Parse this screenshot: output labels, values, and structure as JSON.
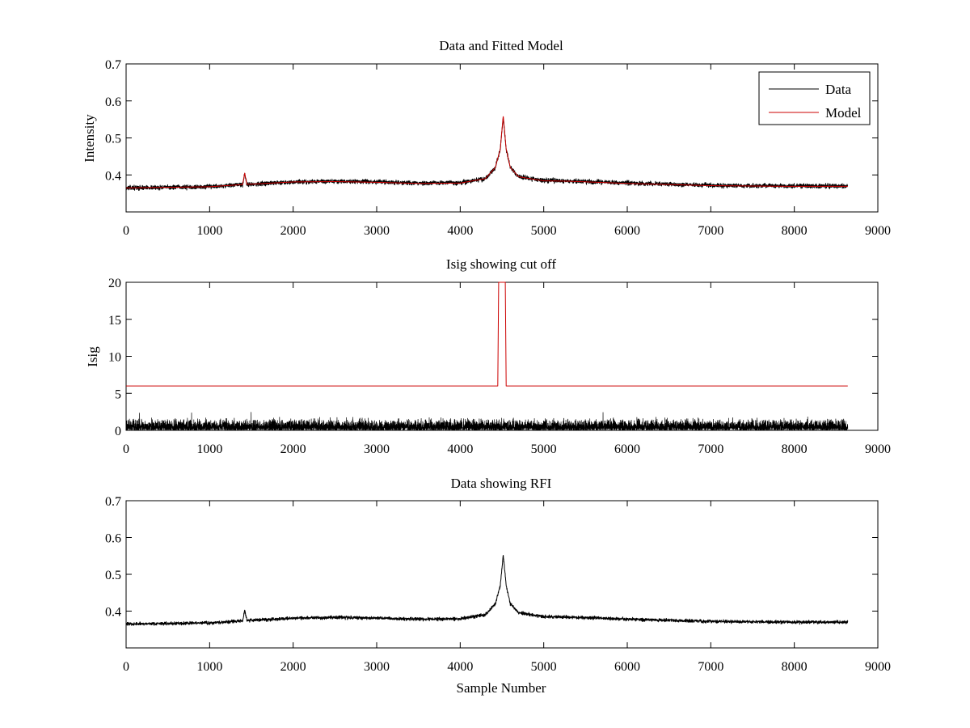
{
  "chart_data": [
    {
      "id": "top",
      "type": "line",
      "title": "Data and Fitted Model",
      "xlabel": "",
      "ylabel": "Intensity",
      "xlim": [
        0,
        9000
      ],
      "ylim": [
        0.3,
        0.7
      ],
      "xticks": [
        "0",
        "1000",
        "2000",
        "3000",
        "4000",
        "5000",
        "6000",
        "7000",
        "8000",
        "9000"
      ],
      "yticks": [
        "0.4",
        "0.5",
        "0.6",
        "0.7"
      ],
      "n_samples": 8640,
      "legend": {
        "location": "top-right",
        "entries": [
          "Data",
          "Model"
        ]
      },
      "series": [
        {
          "name": "Data",
          "color": "#000000",
          "baseline": [
            [
              0,
              0.365
            ],
            [
              1000,
              0.368
            ],
            [
              1400,
              0.374
            ],
            [
              2000,
              0.381
            ],
            [
              2500,
              0.383
            ],
            [
              3000,
              0.381
            ],
            [
              3500,
              0.378
            ],
            [
              4000,
              0.379
            ],
            [
              4300,
              0.39
            ],
            [
              4420,
              0.42
            ],
            [
              4480,
              0.47
            ],
            [
              4515,
              0.555
            ],
            [
              4550,
              0.47
            ],
            [
              4600,
              0.42
            ],
            [
              4700,
              0.395
            ],
            [
              5000,
              0.385
            ],
            [
              5300,
              0.384
            ],
            [
              6000,
              0.378
            ],
            [
              7000,
              0.372
            ],
            [
              8000,
              0.37
            ],
            [
              8640,
              0.37
            ]
          ],
          "spikes": [
            [
              1420,
              0.402
            ]
          ],
          "noise": 0.004
        },
        {
          "name": "Model",
          "color": "#cc0000",
          "baseline": [
            [
              0,
              0.365
            ],
            [
              1000,
              0.368
            ],
            [
              1400,
              0.374
            ],
            [
              2000,
              0.381
            ],
            [
              2500,
              0.382
            ],
            [
              3000,
              0.38
            ],
            [
              3500,
              0.377
            ],
            [
              4000,
              0.378
            ],
            [
              4300,
              0.39
            ],
            [
              4420,
              0.42
            ],
            [
              4480,
              0.47
            ],
            [
              4515,
              0.56
            ],
            [
              4550,
              0.47
            ],
            [
              4600,
              0.42
            ],
            [
              4700,
              0.395
            ],
            [
              5000,
              0.384
            ],
            [
              5300,
              0.383
            ],
            [
              6000,
              0.377
            ],
            [
              7000,
              0.371
            ],
            [
              8000,
              0.369
            ],
            [
              8640,
              0.369
            ]
          ],
          "spikes": [
            [
              1420,
              0.405
            ]
          ],
          "noise": 0
        }
      ]
    },
    {
      "id": "mid",
      "type": "line",
      "title": "Isig showing cut off",
      "xlabel": "",
      "ylabel": "Isig",
      "xlim": [
        0,
        9000
      ],
      "ylim": [
        0,
        20
      ],
      "xticks": [
        "0",
        "1000",
        "2000",
        "3000",
        "4000",
        "5000",
        "6000",
        "7000",
        "8000",
        "9000"
      ],
      "yticks": [
        "0",
        "5",
        "10",
        "15",
        "20"
      ],
      "n_samples": 8640,
      "series": [
        {
          "name": "Isig",
          "color": "#000000",
          "kind": "abs-noise",
          "scale": 1.0,
          "max": 3.5
        },
        {
          "name": "Cut off",
          "color": "#cc0000",
          "kind": "step",
          "points": [
            [
              0,
              6
            ],
            [
              4450,
              6
            ],
            [
              4460,
              20
            ],
            [
              4540,
              20
            ],
            [
              4550,
              6
            ],
            [
              8640,
              6
            ]
          ]
        }
      ]
    },
    {
      "id": "bot",
      "type": "line",
      "title": "Data showing RFI",
      "xlabel": "Sample Number",
      "ylabel": "",
      "xlim": [
        0,
        9000
      ],
      "ylim": [
        0.3,
        0.7
      ],
      "xticks": [
        "0",
        "1000",
        "2000",
        "3000",
        "4000",
        "5000",
        "6000",
        "7000",
        "8000",
        "9000"
      ],
      "yticks": [
        "0.4",
        "0.5",
        "0.6",
        "0.7"
      ],
      "n_samples": 8640,
      "series": [
        {
          "name": "Data",
          "color": "#000000",
          "baseline": [
            [
              0,
              0.365
            ],
            [
              1000,
              0.368
            ],
            [
              1400,
              0.374
            ],
            [
              2000,
              0.381
            ],
            [
              2500,
              0.383
            ],
            [
              3000,
              0.381
            ],
            [
              3500,
              0.378
            ],
            [
              4000,
              0.379
            ],
            [
              4300,
              0.39
            ],
            [
              4420,
              0.42
            ],
            [
              4480,
              0.47
            ],
            [
              4515,
              0.553
            ],
            [
              4550,
              0.47
            ],
            [
              4600,
              0.42
            ],
            [
              4700,
              0.395
            ],
            [
              5000,
              0.385
            ],
            [
              5300,
              0.384
            ],
            [
              6000,
              0.378
            ],
            [
              7000,
              0.372
            ],
            [
              8000,
              0.37
            ],
            [
              8640,
              0.37
            ]
          ],
          "spikes": [
            [
              1420,
              0.402
            ]
          ],
          "noise": 0.003
        }
      ]
    }
  ]
}
